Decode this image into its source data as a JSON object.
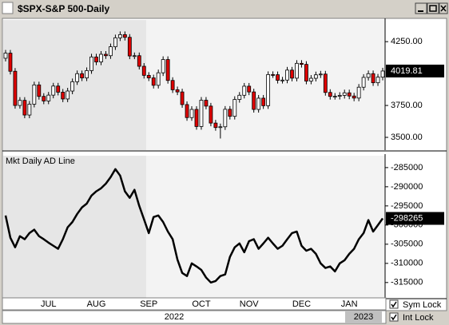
{
  "chart_data": [
    {
      "type": "candlestick",
      "title": "$SPX-S&P 500-Daily",
      "categories": [
        null,
        null,
        null,
        null,
        null,
        null,
        null,
        null,
        null,
        "JUL",
        null,
        null,
        null,
        null,
        null,
        null,
        null,
        null,
        null,
        "AUG",
        null,
        null,
        null,
        null,
        null,
        null,
        null,
        null,
        null,
        null,
        "SEP",
        null,
        null,
        null,
        null,
        null,
        null,
        null,
        null,
        null,
        null,
        "OCT",
        null,
        null,
        null,
        null,
        null,
        null,
        null,
        null,
        null,
        "NOV",
        null,
        null,
        null,
        null,
        null,
        null,
        null,
        null,
        null,
        null,
        "DEC",
        null,
        null,
        null,
        null,
        null,
        null,
        null,
        null,
        null,
        "JAN",
        null,
        null,
        null,
        null,
        null,
        null,
        null
      ],
      "year_labels": [
        "2022",
        "2023"
      ],
      "open": [
        4120,
        4160,
        4018,
        3750,
        3790,
        3675,
        3760,
        3911,
        3821,
        3785,
        3831,
        3902,
        3854,
        3801,
        3863,
        3936,
        3999,
        3966,
        4023,
        4130,
        4091,
        4151,
        4140,
        4210,
        4280,
        4305,
        4284,
        4138,
        4140,
        4057,
        3986,
        3966,
        3908,
        4006,
        4110,
        3946,
        3873,
        3856,
        3757,
        3655,
        3719,
        3585,
        3791,
        3745,
        3612,
        3577,
        3583,
        3720,
        3665,
        3797,
        3830,
        3901,
        3856,
        3719,
        3807,
        3748,
        3992,
        3991,
        3947,
        3949,
        4027,
        3964,
        4080,
        4072,
        3941,
        3963,
        3990,
        3996,
        3852,
        3821,
        3822,
        3829,
        3849,
        3824,
        3808,
        3893,
        3970,
        3999,
        3928,
        3972
      ],
      "high": [
        4185,
        4185,
        4043,
        3815,
        3815,
        3785,
        3936,
        3936,
        3846,
        3856,
        3927,
        3927,
        3879,
        3888,
        3961,
        4024,
        4024,
        4048,
        4155,
        4155,
        4176,
        4176,
        4235,
        4305,
        4330,
        4330,
        4309,
        4165,
        4165,
        4082,
        4011,
        3991,
        4031,
        4135,
        4135,
        3971,
        3898,
        3881,
        3782,
        3744,
        3744,
        3816,
        3816,
        3770,
        3637,
        3608,
        3745,
        3745,
        3822,
        3855,
        3926,
        3926,
        3881,
        3832,
        3832,
        4017,
        4017,
        4016,
        3974,
        4052,
        4052,
        4105,
        4105,
        4097,
        3988,
        4015,
        4021,
        4021,
        3877,
        3847,
        3854,
        3874,
        3874,
        3849,
        3918,
        3995,
        4024,
        4024,
        3997,
        4045
      ],
      "low": [
        4095,
        3993,
        3725,
        3725,
        3650,
        3650,
        3735,
        3796,
        3760,
        3760,
        3806,
        3829,
        3776,
        3776,
        3838,
        3911,
        3941,
        3941,
        3998,
        4066,
        4066,
        4115,
        4115,
        4185,
        4255,
        4259,
        4113,
        4113,
        4032,
        3961,
        3941,
        3883,
        3883,
        3981,
        3921,
        3848,
        3831,
        3732,
        3630,
        3630,
        3560,
        3560,
        3720,
        3587,
        3552,
        3491,
        3558,
        3640,
        3640,
        3772,
        3805,
        3831,
        3694,
        3694,
        3723,
        3723,
        3966,
        3922,
        3922,
        3924,
        3939,
        3939,
        4047,
        3916,
        3916,
        3938,
        3965,
        3827,
        3796,
        3796,
        3797,
        3804,
        3799,
        3783,
        3783,
        3868,
        3945,
        3903,
        3903,
        3947
      ],
      "close": [
        4160,
        4018,
        3750,
        3790,
        3675,
        3760,
        3911,
        3821,
        3785,
        3831,
        3902,
        3854,
        3801,
        3863,
        3936,
        3999,
        3966,
        4023,
        4130,
        4091,
        4151,
        4140,
        4210,
        4280,
        4305,
        4284,
        4138,
        4140,
        4057,
        3986,
        3966,
        3908,
        4006,
        4110,
        3946,
        3873,
        3856,
        3757,
        3655,
        3719,
        3585,
        3791,
        3745,
        3612,
        3577,
        3583,
        3720,
        3665,
        3797,
        3830,
        3901,
        3856,
        3719,
        3807,
        3748,
        3992,
        3991,
        3947,
        3949,
        4027,
        3964,
        4080,
        4072,
        3941,
        3963,
        3990,
        3996,
        3852,
        3821,
        3822,
        3829,
        3849,
        3824,
        3808,
        3893,
        3970,
        3999,
        3928,
        3972,
        4019.81
      ],
      "up_color": "#ffffff",
      "down_color": "#e00000",
      "ylim": [
        3400,
        4420
      ],
      "yticks": [
        {
          "value": 3500,
          "label": "3500.00"
        },
        {
          "value": 3750,
          "label": "3750.00"
        },
        {
          "value": 4250,
          "label": "4250.00"
        }
      ]
    },
    {
      "type": "line",
      "title": "Mkt Daily AD Line",
      "color": "#000000",
      "values": [
        -297500,
        -303300,
        -305800,
        -302900,
        -303700,
        -302100,
        -301200,
        -302900,
        -303700,
        -304600,
        -305400,
        -306200,
        -303700,
        -300600,
        -299200,
        -297100,
        -295400,
        -294400,
        -292300,
        -291200,
        -290400,
        -289200,
        -287500,
        -285400,
        -287100,
        -291200,
        -292900,
        -290800,
        -295000,
        -298500,
        -302100,
        -297900,
        -297500,
        -299200,
        -301700,
        -303700,
        -309000,
        -312500,
        -313300,
        -310000,
        -310800,
        -311700,
        -313700,
        -315000,
        -314600,
        -313300,
        -312900,
        -308300,
        -305800,
        -304800,
        -307100,
        -304200,
        -303700,
        -306200,
        -304800,
        -303300,
        -304800,
        -306200,
        -305400,
        -303700,
        -302100,
        -301700,
        -305400,
        -306700,
        -306200,
        -307500,
        -310000,
        -311200,
        -310800,
        -312100,
        -310000,
        -309200,
        -307500,
        -306200,
        -303700,
        -302100,
        -298700,
        -301700,
        -300000,
        -298265
      ],
      "ylim": [
        -319000,
        -281900
      ],
      "yticks": [
        -285000,
        -290000,
        -295000,
        -300000,
        -305000,
        -310000,
        -315000
      ]
    }
  ],
  "controls": [
    "Sym Lock",
    "Int Lock"
  ]
}
